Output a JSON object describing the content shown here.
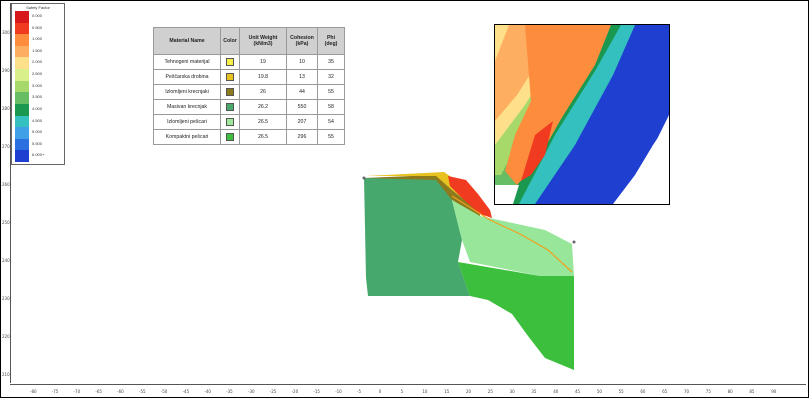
{
  "legend": {
    "title": "Safety Factor",
    "entries": [
      {
        "label": "0.000",
        "color": "#d7191c"
      },
      {
        "label": "0.500",
        "color": "#f03b20"
      },
      {
        "label": "1.000",
        "color": "#fd8d3c"
      },
      {
        "label": "1.500",
        "color": "#fdae61"
      },
      {
        "label": "2.000",
        "color": "#fee08b"
      },
      {
        "label": "2.500",
        "color": "#d9ef8b"
      },
      {
        "label": "3.000",
        "color": "#a6d96a"
      },
      {
        "label": "3.500",
        "color": "#66bd63"
      },
      {
        "label": "4.000",
        "color": "#1a9850"
      },
      {
        "label": "4.500",
        "color": "#35c0c0"
      },
      {
        "label": "5.000",
        "color": "#3fa0e8"
      },
      {
        "label": "5.500",
        "color": "#2b6fe0"
      },
      {
        "label": "6.000+",
        "color": "#1e3fd0"
      }
    ]
  },
  "material_table": {
    "headers": {
      "name": "Material Name",
      "color": "Color",
      "unit_weight": "Unit Weight (kN/m3)",
      "cohesion": "Cohesion (kPa)",
      "phi": "Phi (deg)"
    },
    "rows": [
      {
        "name": "Tehnogeni materijal",
        "swatch": "#f7ef4a",
        "unit_weight": "19",
        "cohesion": "10",
        "phi": "35"
      },
      {
        "name": "Peščarska drobina",
        "swatch": "#e8c21f",
        "unit_weight": "19.8",
        "cohesion": "13",
        "phi": "32"
      },
      {
        "name": "Izlomljeni krecnjaki",
        "swatch": "#8c7a1c",
        "unit_weight": "26",
        "cohesion": "44",
        "phi": "55"
      },
      {
        "name": "Masivan krecnjak",
        "swatch": "#4aa86a",
        "unit_weight": "26.2",
        "cohesion": "550",
        "phi": "58"
      },
      {
        "name": "Izlomljeni pešcari",
        "swatch": "#9ee89a",
        "unit_weight": "26.5",
        "cohesion": "207",
        "phi": "54"
      },
      {
        "name": "Kompaktni pešcari",
        "swatch": "#3fbf3f",
        "unit_weight": "26.5",
        "cohesion": "296",
        "phi": "55"
      }
    ]
  },
  "colors": {
    "massive_limestone": "#47a86d",
    "fractured_sandstone": "#98e69a",
    "compact_sandstone": "#3cbf3c",
    "fractured_limestone": "#8c7a1c",
    "technogenic": "#e8c21f",
    "slip_surface": "#f0a020"
  },
  "rulers": {
    "bottom": [
      "-80",
      "-75",
      "-70",
      "-65",
      "-60",
      "-55",
      "-50",
      "-45",
      "-40",
      "-35",
      "-30",
      "-25",
      "-20",
      "-15",
      "-10",
      "-5",
      "0",
      "5",
      "10",
      "15",
      "20",
      "25",
      "30",
      "35",
      "40",
      "45",
      "50",
      "55",
      "60",
      "65",
      "70",
      "75",
      "80",
      "85",
      "90"
    ],
    "left": [
      "300",
      "290",
      "280",
      "270",
      "260",
      "250",
      "240",
      "230",
      "220",
      "210"
    ]
  }
}
